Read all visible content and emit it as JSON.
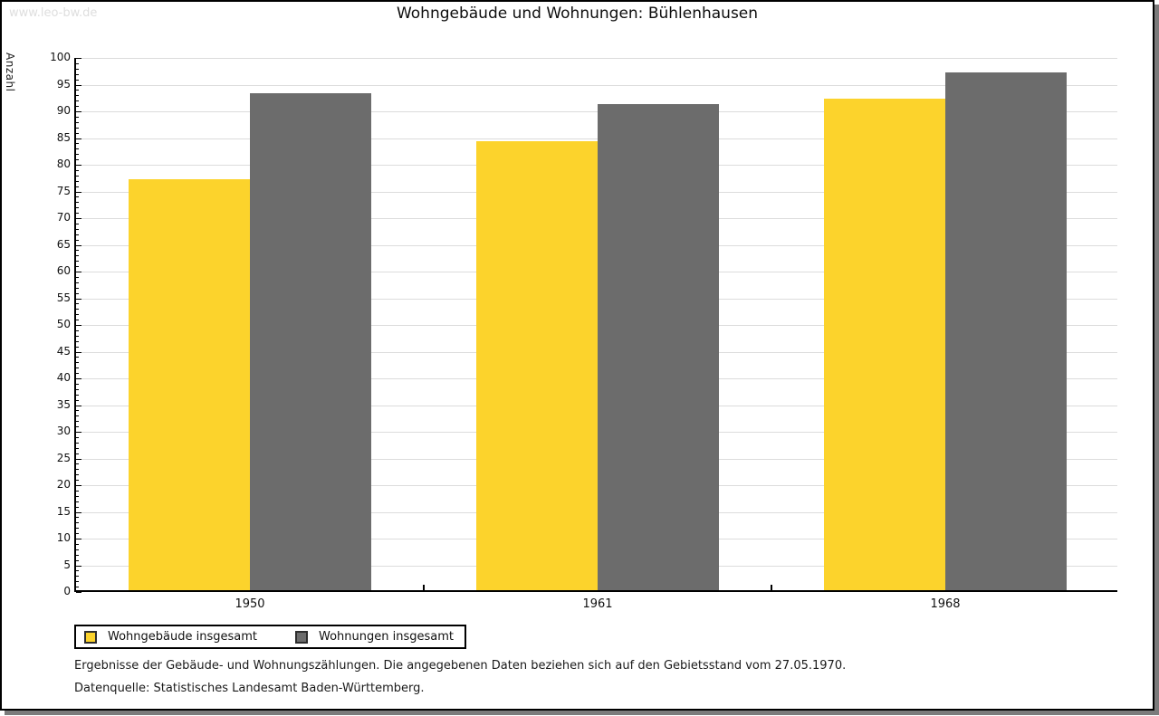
{
  "watermark": "www.leo-bw.de",
  "title": "Wohngebäude und Wohnungen: Bühlenhausen",
  "chart_data": {
    "type": "bar",
    "title": "Wohngebäude und Wohnungen: Bühlenhausen",
    "xlabel": "",
    "ylabel": "Anzahl",
    "categories": [
      "1950",
      "1961",
      "1968"
    ],
    "series": [
      {
        "name": "Wohngebäude insgesamt",
        "color": "#FCD32C",
        "values": [
          77,
          84,
          92
        ]
      },
      {
        "name": "Wohnungen insgesamt",
        "color": "#6C6C6C",
        "values": [
          93,
          91,
          97
        ]
      }
    ],
    "ylim": [
      0,
      100
    ],
    "ytick_step": 5,
    "yminor_step": 1,
    "grid": true,
    "grid_color": "#dcdcdc",
    "legend_position": "bottom-left"
  },
  "footer": {
    "line1": "Ergebnisse der Gebäude- und Wohnungszählungen. Die angegebenen Daten beziehen sich auf den Gebietsstand vom 27.05.1970.",
    "line2": "Datenquelle: Statistisches Landesamt Baden-Württemberg."
  },
  "colors": {
    "card_border": "#000000",
    "card_shadow": "#7b7b7b",
    "watermark": "#dedede"
  }
}
